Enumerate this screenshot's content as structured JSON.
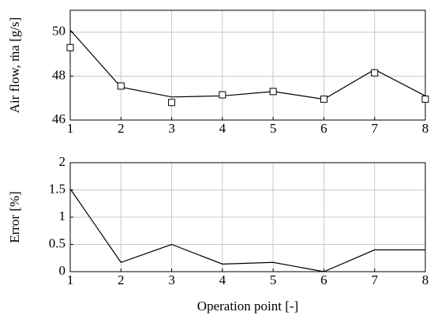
{
  "chart_data": [
    {
      "type": "line",
      "ylabel": "Air flow, ṁa [g/s]",
      "x": [
        1,
        2,
        3,
        4,
        5,
        6,
        7,
        8
      ],
      "series": [
        {
          "color": "#000000",
          "marker": "none",
          "line": true,
          "values": [
            50.1,
            47.5,
            47.05,
            47.1,
            47.3,
            46.95,
            48.3,
            47.1
          ]
        },
        {
          "color": "#000000",
          "marker": "square",
          "line": false,
          "values": [
            49.3,
            47.55,
            46.8,
            47.15,
            47.3,
            46.95,
            48.15,
            46.95
          ]
        }
      ],
      "xlim": [
        1,
        8
      ],
      "xticks": [
        1,
        2,
        3,
        4,
        5,
        6,
        7,
        8
      ],
      "ylim": [
        46,
        51
      ],
      "yticks": [
        46,
        48,
        50
      ],
      "grid": true
    },
    {
      "type": "line",
      "ylabel": "Error [%]",
      "xlabel": "Operation point [-]",
      "x": [
        1,
        2,
        3,
        4,
        5,
        6,
        7,
        8
      ],
      "series": [
        {
          "color": "#000000",
          "marker": "none",
          "line": true,
          "values": [
            1.52,
            0.17,
            0.5,
            0.14,
            0.17,
            0,
            0.4,
            0.4
          ]
        }
      ],
      "xlim": [
        1,
        8
      ],
      "xticks": [
        1,
        2,
        3,
        4,
        5,
        6,
        7,
        8
      ],
      "ylim": [
        0,
        2
      ],
      "yticks": [
        0,
        0.5,
        1,
        1.5,
        2
      ],
      "grid": true
    }
  ]
}
